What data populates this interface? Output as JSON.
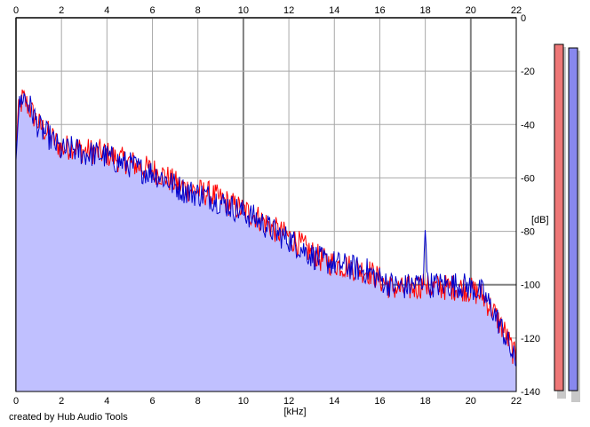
{
  "chart_data": {
    "type": "area",
    "xlabel": "[kHz]",
    "ylabel": "[dB]",
    "xlim": [
      0,
      22
    ],
    "ylim": [
      -140,
      0
    ],
    "x_ticks": [
      "0",
      "2",
      "4",
      "6",
      "8",
      "10",
      "12",
      "14",
      "16",
      "18",
      "20",
      "22"
    ],
    "y_ticks": [
      "0",
      "-20",
      "-40",
      "-60",
      "-80",
      "-100",
      "-120",
      "-140"
    ],
    "grid": true,
    "credit": "created by Hub Audio Tools",
    "series": [
      {
        "color": "#ff0000",
        "x": [
          0,
          0.1,
          0.3,
          0.6,
          1,
          1.5,
          2,
          2.5,
          3,
          3.5,
          4,
          4.5,
          5,
          5.5,
          6,
          6.5,
          7,
          7.5,
          8,
          8.5,
          9,
          9.5,
          10,
          10.5,
          11,
          11.5,
          12,
          12.5,
          13,
          13.5,
          14,
          14.5,
          15,
          15.5,
          16,
          16.5,
          17,
          17.5,
          17.9,
          18,
          18.1,
          18.5,
          19,
          19.5,
          20,
          20.5,
          21,
          21.5,
          22
        ],
        "values": [
          -48,
          -36,
          -30,
          -34,
          -40,
          -44,
          -49,
          -48,
          -50,
          -50,
          -51,
          -53,
          -54,
          -56,
          -57,
          -59,
          -62,
          -64,
          -65,
          -66,
          -68,
          -70,
          -72,
          -74,
          -77,
          -80,
          -82,
          -85,
          -88,
          -91,
          -92,
          -93,
          -94,
          -95,
          -98,
          -101,
          -102,
          -101,
          -100,
          -100,
          -101,
          -101,
          -101,
          -101,
          -102,
          -104,
          -110,
          -118,
          -128
        ]
      },
      {
        "color": "#0000cc",
        "x": [
          0,
          0.1,
          0.3,
          0.6,
          1,
          1.5,
          2,
          2.5,
          3,
          3.5,
          4,
          4.5,
          5,
          5.5,
          6,
          6.5,
          7,
          7.5,
          8,
          8.5,
          9,
          9.5,
          10,
          10.5,
          11,
          11.5,
          12,
          12.5,
          13,
          13.5,
          14,
          14.5,
          15,
          15.5,
          16,
          16.5,
          17,
          17.5,
          17.9,
          18,
          18.1,
          18.5,
          19,
          19.5,
          20,
          20.5,
          21,
          21.5,
          22
        ],
        "values": [
          -50,
          -35,
          -29,
          -33,
          -41,
          -45,
          -50,
          -49,
          -51,
          -51,
          -52,
          -54,
          -55,
          -57,
          -58,
          -60,
          -63,
          -65,
          -66,
          -67,
          -69,
          -71,
          -73,
          -75,
          -78,
          -81,
          -83,
          -86,
          -89,
          -91,
          -92,
          -93,
          -94,
          -95,
          -98,
          -100,
          -101,
          -100,
          -99,
          -78,
          -100,
          -100,
          -100,
          -100,
          -101,
          -103,
          -110,
          -119,
          -130
        ]
      }
    ],
    "fill_color": "#c0c0ff",
    "meter_left_value": -140,
    "meter_right_value": -140,
    "meter_left_color": "#ee7777",
    "meter_right_color": "#8888ee"
  }
}
